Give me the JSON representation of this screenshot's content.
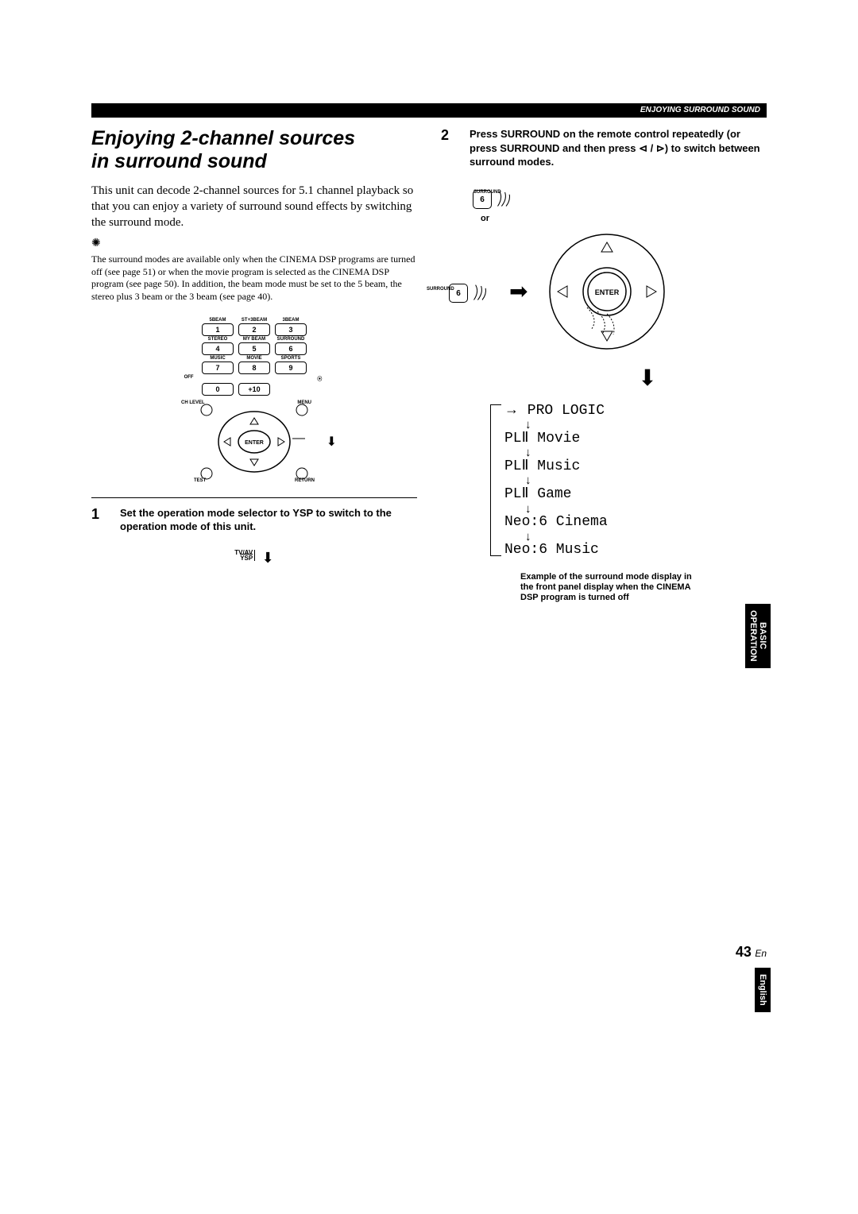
{
  "header": {
    "breadcrumb": "ENJOYING SURROUND SOUND"
  },
  "title": {
    "line1": "Enjoying 2-channel sources",
    "line2": "in surround sound"
  },
  "intro": "This unit can decode 2-channel sources for 5.1 channel playback so that you can enjoy a variety of surround sound effects by switching the surround mode.",
  "note": "The surround modes are available only when the CINEMA DSP programs are turned off (see page 51) or when the movie program is selected as the CINEMA DSP program (see page 50). In addition, the beam mode must be set to the 5 beam, the stereo plus 3 beam or the 3 beam (see page 40).",
  "remote": {
    "row_labels": [
      [
        "5BEAM",
        "ST+3BEAM",
        "3BEAM"
      ],
      [
        "STEREO",
        "MY BEAM",
        "SURROUND"
      ],
      [
        "MUSIC",
        "MOVIE",
        "SPORTS"
      ],
      [
        "OFF",
        "",
        ""
      ]
    ],
    "rows": [
      [
        "1",
        "2",
        "3"
      ],
      [
        "4",
        "5",
        "6"
      ],
      [
        "7",
        "8",
        "9"
      ],
      [
        "0",
        "+10",
        ""
      ]
    ],
    "dpad": {
      "ch_level": "CH LEVEL",
      "menu": "MENU",
      "enter": "ENTER",
      "test": "TEST",
      "return": "RETURN",
      "tvav": "TV/AV",
      "ysp": "YSP"
    }
  },
  "step1": {
    "num": "1",
    "text": "Set the operation mode selector to YSP to switch to the operation mode of this unit."
  },
  "step2": {
    "num": "2",
    "text": "Press SURROUND on the remote control repeatedly (or press SURROUND and then press ⊲ / ⊳) to switch between surround modes."
  },
  "switch": {
    "tvav": "TV/AV",
    "ysp": "YSP"
  },
  "surround_btn": {
    "label": "SURROUND",
    "num": "6",
    "or": "or",
    "enter": "ENTER"
  },
  "modes": {
    "items": [
      "PRO LOGIC",
      "PLⅡ Movie",
      "PLⅡ Music",
      "PLⅡ Game",
      "Neo:6 Cinema",
      "Neo:6 Music"
    ]
  },
  "example_caption": "Example of the surround mode display in the front panel display when the CINEMA DSP program is turned off",
  "tabs": {
    "basic_op": "BASIC\nOPERATION",
    "english": "English"
  },
  "page": {
    "num": "43",
    "lang": "En"
  },
  "colors": {
    "bg": "#ffffff",
    "fg": "#000000"
  }
}
